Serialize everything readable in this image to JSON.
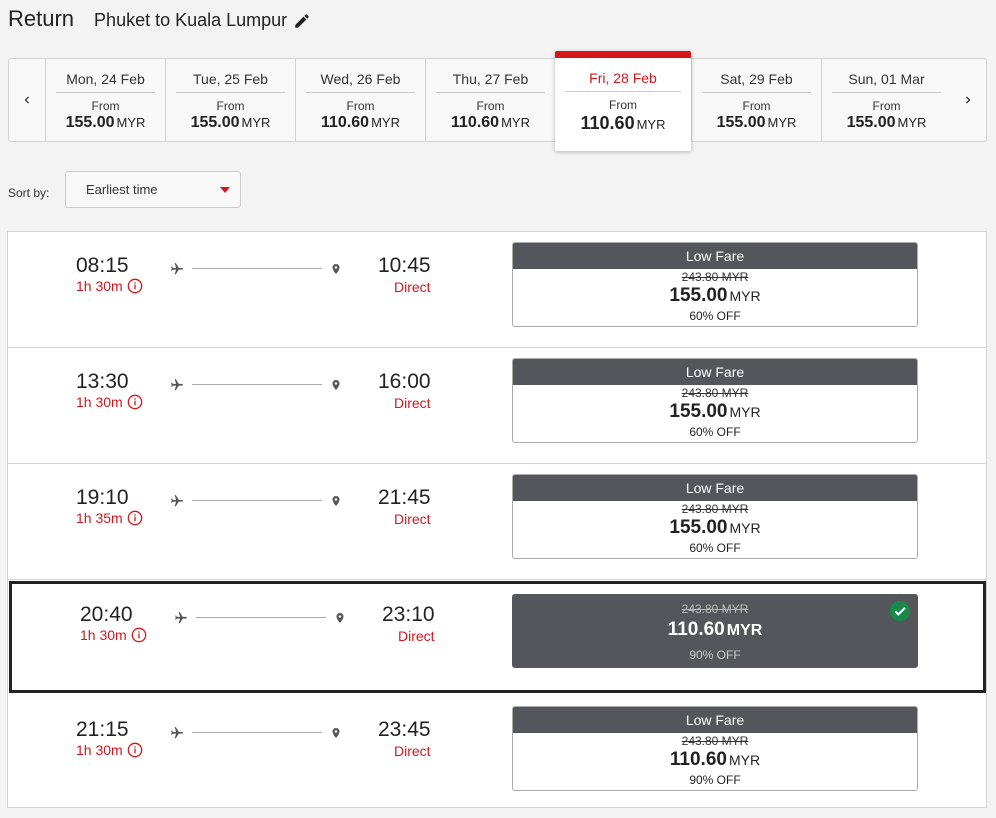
{
  "header": {
    "title": "Return",
    "route": "Phuket to Kuala Lumpur"
  },
  "date_bar": {
    "dates": [
      {
        "date": "Mon, 24 Feb",
        "from": "From",
        "price": "155.00",
        "currency": "MYR"
      },
      {
        "date": "Tue, 25 Feb",
        "from": "From",
        "price": "155.00",
        "currency": "MYR"
      },
      {
        "date": "Wed, 26 Feb",
        "from": "From",
        "price": "110.60",
        "currency": "MYR"
      },
      {
        "date": "Thu, 27 Feb",
        "from": "From",
        "price": "110.60",
        "currency": "MYR"
      },
      {
        "date": "Fri, 28 Feb",
        "from": "From",
        "price": "110.60",
        "currency": "MYR"
      },
      {
        "date": "Sat, 29 Feb",
        "from": "From",
        "price": "155.00",
        "currency": "MYR"
      },
      {
        "date": "Sun, 01 Mar",
        "from": "From",
        "price": "155.00",
        "currency": "MYR"
      }
    ],
    "active_index": 4
  },
  "sort": {
    "label": "Sort by:",
    "value": "Earliest time"
  },
  "flights": [
    {
      "depart": "08:15",
      "duration": "1h 30m",
      "arrive": "10:45",
      "stops": "Direct",
      "fare_name": "Low Fare",
      "old_price": "243.80 MYR",
      "price": "155.00",
      "currency": "MYR",
      "discount": "60% OFF",
      "selected": false
    },
    {
      "depart": "13:30",
      "duration": "1h 30m",
      "arrive": "16:00",
      "stops": "Direct",
      "fare_name": "Low Fare",
      "old_price": "243.80 MYR",
      "price": "155.00",
      "currency": "MYR",
      "discount": "60% OFF",
      "selected": false
    },
    {
      "depart": "19:10",
      "duration": "1h 35m",
      "arrive": "21:45",
      "stops": "Direct",
      "fare_name": "Low Fare",
      "old_price": "243.80 MYR",
      "price": "155.00",
      "currency": "MYR",
      "discount": "60% OFF",
      "selected": false
    },
    {
      "depart": "20:40",
      "duration": "1h 30m",
      "arrive": "23:10",
      "stops": "Direct",
      "fare_name": "",
      "old_price": "243.80 MYR",
      "price": "110.60",
      "currency": "MYR",
      "discount": "90% OFF",
      "selected": true
    },
    {
      "depart": "21:15",
      "duration": "1h 30m",
      "arrive": "23:45",
      "stops": "Direct",
      "fare_name": "Low Fare",
      "old_price": "243.80 MYR",
      "price": "110.60",
      "currency": "MYR",
      "discount": "90% OFF",
      "selected": false
    }
  ],
  "colors": {
    "accent": "#d8151b",
    "fare_header": "#55565b",
    "check": "#1a8a4a"
  },
  "icons": {
    "edit": "pencil-icon",
    "prev": "chevron-left-icon",
    "next": "chevron-right-icon",
    "info": "info-icon",
    "plane": "plane-icon",
    "destination": "location-pin-icon",
    "selected": "check-circle-icon"
  }
}
